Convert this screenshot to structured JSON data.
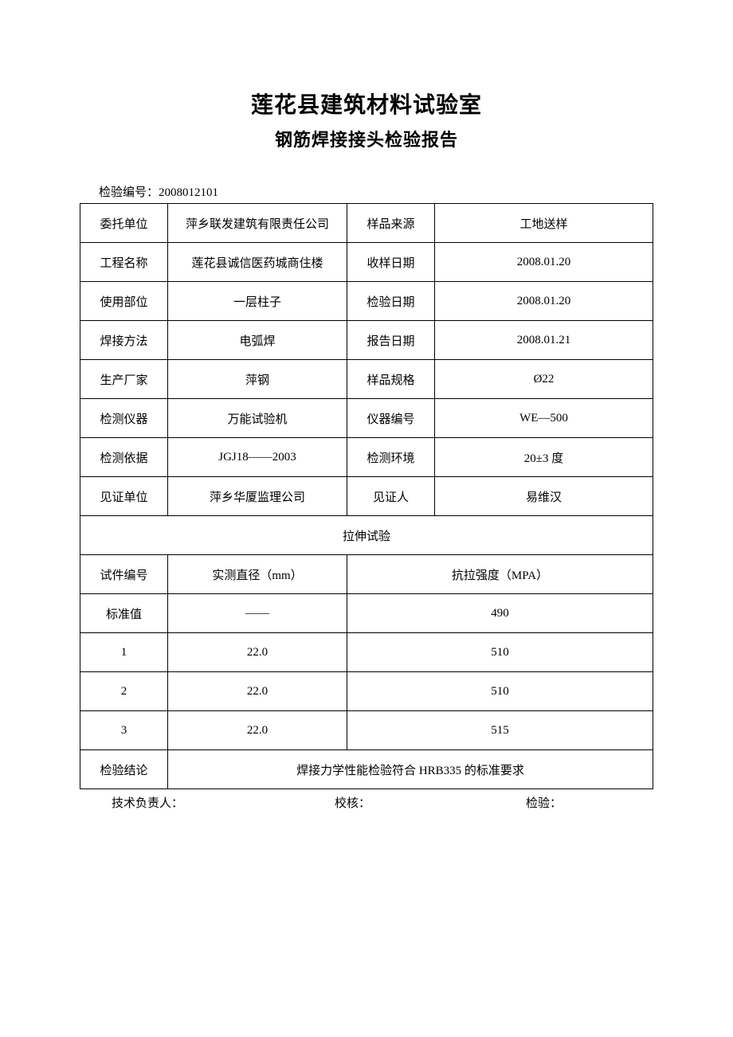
{
  "header": {
    "title_main": "莲花县建筑材料试验室",
    "title_sub": "钢筋焊接接头检验报告",
    "report_no_label": "检验编号：",
    "report_no": "2008012101"
  },
  "info_rows": [
    {
      "l1": "委托单位",
      "v1": "萍乡联发建筑有限责任公司",
      "l2": "样品来源",
      "v2": "工地送样"
    },
    {
      "l1": "工程名称",
      "v1": "莲花县诚信医药城商住楼",
      "l2": "收样日期",
      "v2": "2008.01.20"
    },
    {
      "l1": "使用部位",
      "v1": "一层柱子",
      "l2": "检验日期",
      "v2": "2008.01.20"
    },
    {
      "l1": "焊接方法",
      "v1": "电弧焊",
      "l2": "报告日期",
      "v2": "2008.01.21"
    },
    {
      "l1": "生产厂家",
      "v1": "萍钢",
      "l2": "样品规格",
      "v2": "Ø22"
    },
    {
      "l1": "检测仪器",
      "v1": "万能试验机",
      "l2": "仪器编号",
      "v2": "WE—500"
    },
    {
      "l1": "检测依据",
      "v1": "JGJ18——2003",
      "l2": "检测环境",
      "v2": "20±3 度"
    },
    {
      "l1": "见证单位",
      "v1": "萍乡华厦监理公司",
      "l2": "见证人",
      "v2": "易维汉"
    }
  ],
  "tensile": {
    "section_title": "拉伸试验",
    "headers": {
      "col1": "试件编号",
      "col2": "实测直径（mm）",
      "col3": "抗拉强度（MPA）"
    },
    "rows": [
      {
        "id": "标准值",
        "diameter": "——",
        "strength": "490"
      },
      {
        "id": "1",
        "diameter": "22.0",
        "strength": "510"
      },
      {
        "id": "2",
        "diameter": "22.0",
        "strength": "510"
      },
      {
        "id": "3",
        "diameter": "22.0",
        "strength": "515"
      }
    ],
    "conclusion_label": "检验结论",
    "conclusion_value": "焊接力学性能检验符合 HRB335 的标准要求"
  },
  "footer": {
    "f1": "技术负责人：",
    "f2": "校核：",
    "f3": "检验："
  }
}
